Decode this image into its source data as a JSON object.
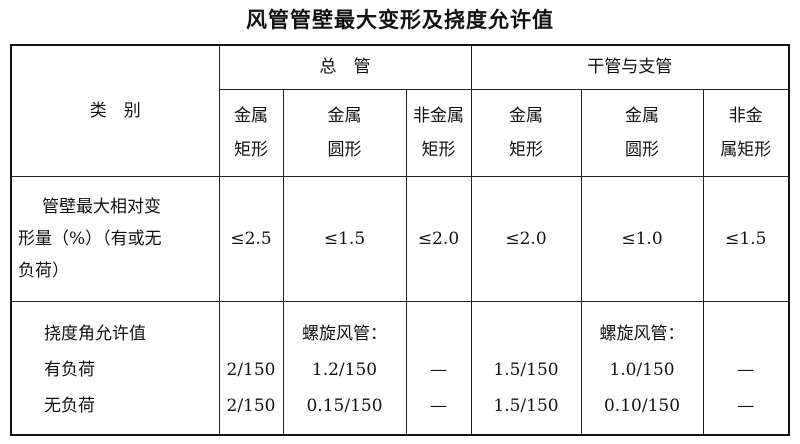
{
  "title": "风管管壁最大变形及挠度允许值",
  "header": {
    "category": "类　别",
    "group_main": "总　管",
    "group_branch": "干管与支管",
    "columns": [
      "金属\n矩形",
      "金属\n圆形",
      "非金属\n矩形",
      "金属\n矩形",
      "金属\n圆形",
      "非金\n属矩形"
    ]
  },
  "rows": {
    "deformation": {
      "label_lines": [
        "管壁最大相对变",
        "形量（%）（有或无",
        "负荷）"
      ],
      "values": [
        "≤2.5",
        "≤1.5",
        "≤2.0",
        "≤2.0",
        "≤1.0",
        "≤1.5"
      ]
    },
    "deflection": {
      "label_lines": [
        "挠度角允许值",
        "有负荷",
        "无负荷"
      ],
      "spiral_note": "螺旋风管：",
      "loaded": [
        "2/150",
        "1.2/150",
        "—",
        "1.5/150",
        "1.0/150",
        "—"
      ],
      "unloaded": [
        "2/150",
        "0.15/150",
        "—",
        "1.5/150",
        "0.10/150",
        "—"
      ]
    }
  }
}
